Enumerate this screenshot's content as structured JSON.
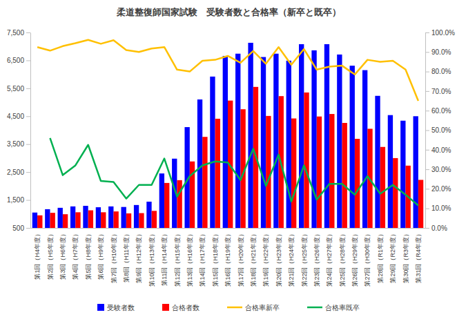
{
  "chart_data": {
    "type": "bar",
    "title": "柔道整復師国家試験　受験者数と合格率（新卒と既卒）",
    "categories": [
      "第1回（H4年度）",
      "第2回（H5年度）",
      "第3回（H6年度）",
      "第4回（H7年度）",
      "第5回（H8年度）",
      "第6回（H9年度）",
      "第7回（H10年度）",
      "第8回（H11年度）",
      "第9回（H12年度）",
      "第10回（H13年度）",
      "第11回（H14年度）",
      "第12回（H15年度）",
      "第13回（H16年度）",
      "第14回（H17年度）",
      "第15回（H18年度）",
      "第16回（H19年度）",
      "第17回（H20年度）",
      "第18回（H21年度）",
      "第19回（H22年度）",
      "第20回（H23年度）",
      "第21回（H24年度）",
      "第22回（H25年度）",
      "第23回（H26年度）",
      "第24回（H27年度）",
      "第25回（H28年度）",
      "第26回（H29年度）",
      "第27回（H30年度）",
      "第28回（R1年度）",
      "第29回（R2年度）",
      "第30回（R3年度）",
      "第31回（R4年度）"
    ],
    "series": [
      {
        "name": "受験者数",
        "type": "bar",
        "color": "#0000ff",
        "values": [
          1050,
          1170,
          1220,
          1270,
          1290,
          1240,
          1270,
          1250,
          1320,
          1440,
          2450,
          2980,
          4110,
          5100,
          5920,
          6660,
          6740,
          7130,
          6620,
          6740,
          6490,
          7080,
          6860,
          7080,
          6710,
          6310,
          6150,
          5230,
          4540,
          4340,
          4500
        ]
      },
      {
        "name": "合格者数",
        "type": "bar",
        "color": "#ff0000",
        "values": [
          950,
          1040,
          990,
          1060,
          1130,
          1060,
          1090,
          1020,
          1030,
          1110,
          2110,
          2210,
          2880,
          3760,
          4410,
          5060,
          4750,
          5550,
          4510,
          5220,
          4420,
          5350,
          4490,
          4580,
          4260,
          3690,
          4050,
          3400,
          3000,
          2730,
          2220
        ]
      },
      {
        "name": "合格率新卒",
        "type": "line",
        "color": "#ffc000",
        "axis": "y2",
        "values": [
          92.5,
          90.7,
          93.0,
          94.5,
          96.2,
          94.2,
          96.0,
          91.0,
          90.0,
          91.8,
          92.5,
          81.0,
          80.0,
          85.5,
          86.0,
          88.0,
          84.5,
          90.5,
          84.0,
          92.5,
          83.5,
          91.5,
          81.0,
          82.5,
          83.0,
          78.5,
          86.0,
          85.0,
          85.5,
          81.0,
          65.0
        ]
      },
      {
        "name": "合格率既卒",
        "type": "line",
        "color": "#00b050",
        "axis": "y2",
        "values": [
          null,
          46.0,
          27.0,
          32.0,
          42.5,
          24.0,
          23.5,
          15.0,
          22.0,
          22.0,
          35.5,
          16.0,
          26.5,
          32.0,
          34.0,
          33.5,
          24.5,
          40.5,
          21.5,
          37.5,
          13.5,
          32.0,
          14.5,
          22.5,
          22.5,
          17.0,
          26.5,
          17.5,
          22.0,
          17.0,
          11.5
        ]
      }
    ],
    "ylim": [
      500,
      7500
    ],
    "yticks": [
      500,
      {
        "value": 1500,
        "label": "1,500"
      },
      {
        "value": 2500,
        "label": "2,500"
      },
      {
        "value": 3500,
        "label": "3,500"
      },
      {
        "value": 4500,
        "label": "4,500"
      },
      {
        "value": 5500,
        "label": "5,500"
      },
      {
        "value": 6500,
        "label": "6,500"
      },
      {
        "value": 7500,
        "label": "7,500"
      }
    ],
    "y2lim": [
      0,
      100
    ],
    "y2ticks": [
      {
        "value": 0,
        "label": "0.0%"
      },
      {
        "value": 10,
        "label": "10.0%"
      },
      {
        "value": 20,
        "label": "20.0%"
      },
      {
        "value": 30,
        "label": "30.0%"
      },
      {
        "value": 40,
        "label": "40.0%"
      },
      {
        "value": 50,
        "label": "50.0%"
      },
      {
        "value": 60,
        "label": "60.0%"
      },
      {
        "value": 70,
        "label": "70.0%"
      },
      {
        "value": 80,
        "label": "80.0%"
      },
      {
        "value": 90,
        "label": "90.0%"
      },
      {
        "value": 100,
        "label": "100.0%"
      }
    ],
    "grid": false,
    "legend": "bottom"
  }
}
